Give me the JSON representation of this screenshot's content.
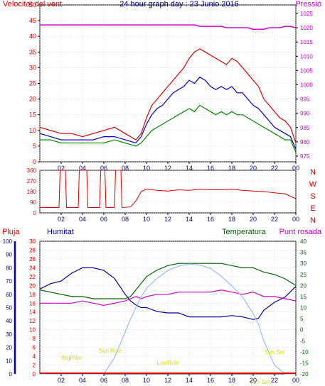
{
  "title": "24 hour graph day : 23 Junio 2016",
  "colors": {
    "wind": "#dd0000",
    "gust": "#0000cc",
    "windAvg": "#008800",
    "pressure": "#cc00cc",
    "direction": "#dd0000",
    "rain": "#dd0000",
    "humidity": "#0000aa",
    "temperature": "#006600",
    "dewpoint": "#cc00cc",
    "solar": "#99bbff",
    "sunlabels": "#dddd00",
    "grid": "#cccccc"
  },
  "xticks": [
    "02",
    "04",
    "06",
    "08",
    "10",
    "12",
    "14",
    "16",
    "18",
    "20",
    "22",
    "00"
  ],
  "chart_data": [
    {
      "type": "line",
      "name": "wind",
      "labels": {
        "left": "Velocitat del vent",
        "right": "Pressió"
      },
      "y_left_ticks": [
        0,
        5,
        10,
        15,
        20,
        25,
        30,
        35,
        40,
        45,
        50
      ],
      "y_right_ticks": [
        975,
        980,
        985,
        990,
        995,
        1000,
        1005,
        1010,
        1015,
        1020,
        1025
      ],
      "ylim_left": [
        0,
        50
      ],
      "ylim_right": [
        973,
        1028
      ],
      "x": [
        0,
        1,
        2,
        3,
        4,
        5,
        6,
        7,
        8,
        9,
        9.5,
        10,
        10.5,
        11,
        11.5,
        12,
        12.5,
        13,
        13.5,
        14,
        14.5,
        15,
        15.5,
        16,
        16.5,
        17,
        17.5,
        18,
        18.5,
        19,
        19.5,
        20,
        20.5,
        21,
        21.5,
        22,
        22.5,
        23,
        23.5,
        24
      ],
      "series": [
        {
          "key": "gust",
          "values": [
            11,
            10,
            9,
            9,
            8,
            9,
            10,
            11,
            9,
            7,
            9,
            14,
            18,
            20,
            22,
            24,
            26,
            28,
            30,
            33,
            35,
            36,
            35,
            34,
            33,
            32,
            31,
            33,
            32,
            30,
            28,
            26,
            24,
            20,
            18,
            16,
            14,
            13,
            11,
            6
          ]
        },
        {
          "key": "speed",
          "values": [
            9,
            8,
            7,
            7,
            7,
            7,
            8,
            8,
            7,
            6,
            8,
            12,
            15,
            17,
            18,
            20,
            22,
            23,
            24,
            26,
            25,
            27,
            26,
            24,
            23,
            24,
            23,
            24,
            22,
            22,
            20,
            18,
            17,
            15,
            13,
            11,
            10,
            9,
            8,
            4
          ]
        },
        {
          "key": "average",
          "values": [
            7,
            7,
            6,
            6,
            6,
            6,
            6,
            7,
            6,
            5,
            6,
            8,
            10,
            11,
            12,
            13,
            14,
            15,
            16,
            17,
            16,
            18,
            17,
            16,
            15,
            16,
            15,
            16,
            15,
            15,
            14,
            13,
            12,
            11,
            10,
            9,
            8,
            7,
            7,
            3
          ]
        },
        {
          "key": "pressure",
          "values": [
            1021,
            1021,
            1021,
            1021,
            1021,
            1021,
            1021,
            1021,
            1021,
            1021,
            1021,
            1021,
            1021,
            1021,
            1021,
            1021,
            1021,
            1021,
            1021,
            1021,
            1021,
            1020.5,
            1020.5,
            1020.5,
            1020.5,
            1020.5,
            1020,
            1020,
            1020,
            1020,
            1020,
            1019.5,
            1019.5,
            1019.5,
            1020,
            1020,
            1020,
            1020.5,
            1020.5,
            1020
          ]
        }
      ]
    },
    {
      "type": "line",
      "name": "direction",
      "y_left_ticks": [
        0,
        90,
        180,
        270,
        360
      ],
      "y_right_labels": [
        "N",
        "W",
        "S",
        "E",
        "N"
      ],
      "ylim": [
        0,
        360
      ],
      "x": [
        0,
        1.8,
        1.9,
        2.4,
        2.5,
        3.6,
        3.7,
        4.4,
        4.5,
        5.6,
        5.7,
        6.1,
        6.2,
        7.0,
        7.1,
        7.6,
        7.7,
        8.5,
        9.0,
        9.5,
        10,
        11,
        12,
        13,
        14,
        15,
        16,
        17,
        18,
        19,
        20,
        21,
        22,
        23,
        23.5,
        24
      ],
      "values": [
        45,
        45,
        360,
        360,
        45,
        45,
        360,
        360,
        45,
        45,
        360,
        360,
        45,
        45,
        360,
        360,
        45,
        50,
        100,
        180,
        200,
        190,
        185,
        195,
        190,
        200,
        195,
        195,
        200,
        190,
        185,
        180,
        170,
        160,
        140,
        120
      ]
    },
    {
      "type": "line",
      "name": "climate",
      "labels": {
        "rain": "Pluja",
        "humidity": "Humitat",
        "temperature": "Temperatura",
        "dewpoint": "Punt rosada"
      },
      "y_hum_ticks": [
        0,
        10,
        20,
        30,
        40,
        50,
        60,
        70,
        80,
        90,
        100
      ],
      "y_rain_ticks": [
        0,
        2,
        4,
        6,
        8,
        10,
        12,
        14,
        16,
        18,
        20,
        22,
        24,
        26,
        28,
        30
      ],
      "y_temp_ticks": [
        -20,
        -15,
        -10,
        -5,
        0,
        5,
        10,
        15,
        20,
        25,
        30,
        35,
        40
      ],
      "ylim_hum": [
        0,
        100
      ],
      "ylim_temp": [
        -20,
        40
      ],
      "x": [
        0,
        1,
        2,
        3,
        4,
        5,
        6,
        7,
        8,
        8.5,
        9,
        9.5,
        10,
        11,
        12,
        13,
        14,
        15,
        16,
        17,
        18,
        19,
        20,
        20.5,
        21,
        22,
        23,
        24
      ],
      "series": [
        {
          "key": "humidity",
          "values": [
            64,
            68,
            70,
            76,
            80,
            80,
            78,
            72,
            60,
            55,
            52,
            50,
            50,
            47,
            46,
            46,
            43,
            43,
            43,
            43,
            44,
            43,
            41,
            42,
            48,
            54,
            58,
            66
          ]
        },
        {
          "key": "temperature",
          "values": [
            18,
            17,
            16,
            15,
            15,
            14,
            14,
            14,
            14,
            15,
            18,
            21,
            24,
            27,
            29,
            30,
            30,
            30,
            30,
            30,
            29,
            28,
            28,
            27,
            26,
            25,
            23,
            20
          ]
        },
        {
          "key": "dewpoint",
          "values": [
            12,
            12,
            12,
            12,
            13,
            12,
            11,
            12,
            13,
            14,
            15,
            14,
            15,
            16,
            16,
            17,
            17,
            17,
            17,
            18,
            17,
            16,
            17,
            16,
            15,
            15,
            14,
            13
          ]
        },
        {
          "key": "solar",
          "values": [
            0,
            0,
            0,
            0,
            0,
            0,
            0,
            15,
            38,
            50,
            60,
            70,
            78,
            87,
            94,
            98,
            100,
            99,
            96,
            89,
            80,
            70,
            55,
            45,
            30,
            8,
            0,
            0
          ]
        },
        {
          "key": "rain",
          "values": [
            0,
            0,
            0,
            0,
            0,
            0,
            0,
            0,
            0,
            0,
            0,
            0,
            0,
            0,
            0,
            0,
            0,
            0,
            0,
            0,
            0,
            0,
            0,
            0,
            0,
            0,
            0,
            0
          ]
        }
      ],
      "annotations": [
        {
          "label": "Sun Rise",
          "x": 6.6
        },
        {
          "label": "BigRide",
          "x": 3.0
        },
        {
          "label": "LowRide",
          "x": 12.0
        },
        {
          "label": "Sun Set",
          "x": 22.0
        },
        {
          "label": "Sun Set",
          "x": 20.6
        }
      ]
    }
  ]
}
